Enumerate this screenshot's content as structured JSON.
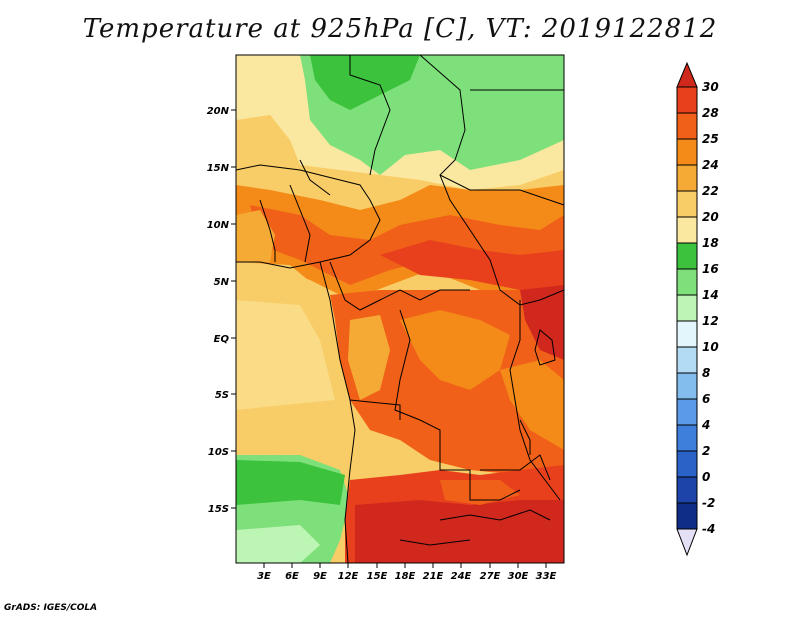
{
  "title": "Temperature at 925hPa [C], VT: 2019122812",
  "credit": "GrADS: IGES/COLA",
  "map": {
    "lat_labels": [
      "20N",
      "15N",
      "10N",
      "5N",
      "EQ",
      "5S",
      "10S",
      "15S"
    ],
    "lon_labels": [
      "3E",
      "6E",
      "9E",
      "12E",
      "15E",
      "18E",
      "21E",
      "24E",
      "27E",
      "30E",
      "33E"
    ]
  },
  "colorbar": {
    "levels": [
      "30",
      "28",
      "25",
      "24",
      "22",
      "20",
      "18",
      "16",
      "14",
      "12",
      "10",
      "8",
      "6",
      "4",
      "2",
      "0",
      "-2",
      "-4"
    ],
    "colors": {
      "over": "#d0281c",
      "gt28": "#e8401c",
      "25_28": "#f06018",
      "24_25": "#f48a18",
      "22_24": "#f6aa36",
      "20_22": "#f8cc66",
      "18_20": "#fbe8a0",
      "16_18": "#3cc23c",
      "14_16": "#7ee07a",
      "12_14": "#bdf5b4",
      "10_12": "#e2f6fb",
      "8_10": "#b3dcf4",
      "6_8": "#82bdee",
      "4_6": "#5a9ae6",
      "2_4": "#3e7fdc",
      "0_2": "#2a62c8",
      "m2_0": "#1d45a9",
      "m4_m2": "#0f2c86",
      "under": "#0a1c66"
    }
  }
}
